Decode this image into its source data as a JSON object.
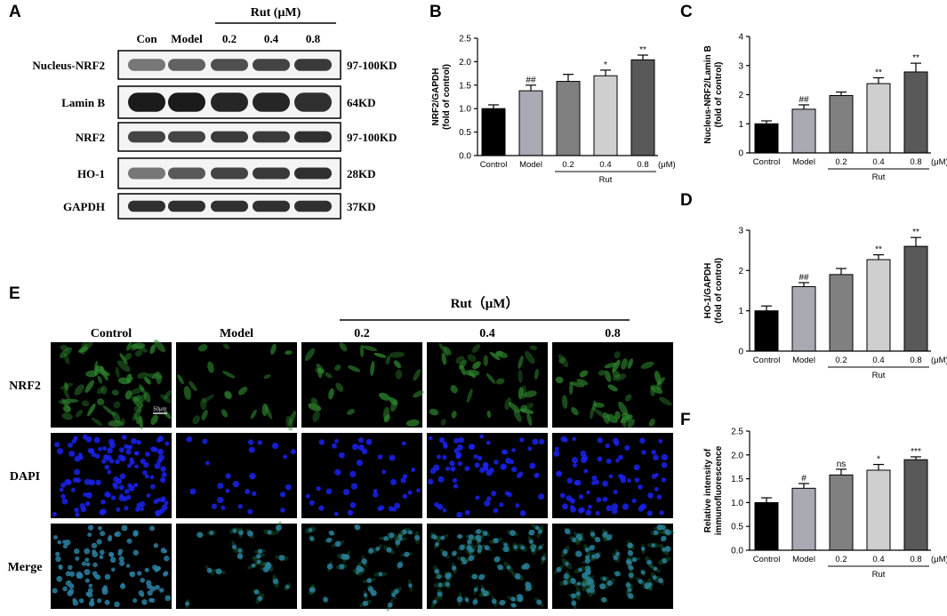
{
  "panels": {
    "A": {
      "letter": "A",
      "rut_header": "Rut (μM)",
      "lanes": [
        "Con",
        "Model",
        "0.2",
        "0.4",
        "0.8"
      ],
      "rows": [
        {
          "name": "Nucleus-NRF2",
          "size": "97-100KD",
          "intensity": [
            0.55,
            0.65,
            0.75,
            0.8,
            0.85
          ],
          "band_height": 0.42
        },
        {
          "name": "Lamin B",
          "size": "64KD",
          "intensity": [
            1.0,
            1.0,
            0.95,
            0.95,
            0.9
          ],
          "band_height": 0.6
        },
        {
          "name": "NRF2",
          "size": "97-100KD",
          "intensity": [
            0.8,
            0.8,
            0.85,
            0.85,
            0.9
          ],
          "band_height": 0.4
        },
        {
          "name": "HO-1",
          "size": "28KD",
          "intensity": [
            0.55,
            0.7,
            0.8,
            0.85,
            0.9
          ],
          "band_height": 0.38
        },
        {
          "name": "GAPDH",
          "size": "37KD",
          "intensity": [
            0.9,
            0.9,
            0.9,
            0.9,
            0.9
          ],
          "band_height": 0.45
        }
      ]
    },
    "E": {
      "letter": "E",
      "rut_header": "Rut（μM）",
      "columns": [
        "Control",
        "Model",
        "0.2",
        "0.4",
        "0.8"
      ],
      "rows": [
        "NRF2",
        "DAPI",
        "Merge"
      ],
      "scale_label": "50μm",
      "row_colors": [
        "#2f8a2f",
        "#1a22ee",
        "#2a7fa0"
      ],
      "cell_counts": [
        [
          70,
          22,
          30,
          38,
          40
        ],
        [
          120,
          25,
          40,
          70,
          75
        ],
        [
          110,
          25,
          40,
          70,
          75
        ]
      ]
    }
  },
  "chart_data": [
    {
      "letter": "B",
      "type": "bar",
      "categories": [
        "Control",
        "Model",
        "0.2",
        "0.4",
        "0.8"
      ],
      "values": [
        1.0,
        1.38,
        1.58,
        1.7,
        2.04
      ],
      "errors": [
        0.08,
        0.12,
        0.15,
        0.12,
        0.1
      ],
      "significance": [
        "",
        "##",
        "",
        "*",
        "**"
      ],
      "ylabel": "NRF2/GAPDH\n(fold of control)",
      "ylim": [
        0,
        2.5
      ],
      "yticks": [
        "0.0",
        "0.5",
        "1.0",
        "1.5",
        "2.0",
        "2.5"
      ],
      "unit": "(μM)",
      "group_label": "Rut",
      "colors": [
        "#000000",
        "#a9a9b3",
        "#808080",
        "#cfcfcf",
        "#595959"
      ]
    },
    {
      "letter": "C",
      "type": "bar",
      "categories": [
        "Control",
        "Model",
        "0.2",
        "0.4",
        "0.8"
      ],
      "values": [
        1.0,
        1.5,
        1.97,
        2.38,
        2.78
      ],
      "errors": [
        0.1,
        0.15,
        0.12,
        0.2,
        0.3
      ],
      "significance": [
        "",
        "##",
        "",
        "**",
        "**"
      ],
      "ylabel": "Nucleus-NRF2/Lamin B\n(fold of control)",
      "ylim": [
        0,
        4
      ],
      "yticks": [
        "0",
        "1",
        "2",
        "3",
        "4"
      ],
      "unit": "(μM)",
      "group_label": "Rut",
      "colors": [
        "#000000",
        "#a9a9b3",
        "#808080",
        "#cfcfcf",
        "#595959"
      ]
    },
    {
      "letter": "D",
      "type": "bar",
      "categories": [
        "Control",
        "Model",
        "0.2",
        "0.4",
        "0.8"
      ],
      "values": [
        1.0,
        1.6,
        1.9,
        2.27,
        2.6
      ],
      "errors": [
        0.12,
        0.1,
        0.15,
        0.12,
        0.22
      ],
      "significance": [
        "",
        "##",
        "",
        "**",
        "**"
      ],
      "ylabel": "HO-1/GAPDH\n(fold of control)",
      "ylim": [
        0,
        3
      ],
      "yticks": [
        "0",
        "1",
        "2",
        "3"
      ],
      "unit": "(μM)",
      "group_label": "Rut",
      "colors": [
        "#000000",
        "#a9a9b3",
        "#808080",
        "#cfcfcf",
        "#595959"
      ]
    },
    {
      "letter": "F",
      "type": "bar",
      "categories": [
        "Control",
        "Model",
        "0.2",
        "0.4",
        "0.8"
      ],
      "values": [
        1.0,
        1.3,
        1.58,
        1.68,
        1.9
      ],
      "errors": [
        0.1,
        0.1,
        0.12,
        0.12,
        0.06
      ],
      "significance": [
        "",
        "#",
        "ns",
        "*",
        "***"
      ],
      "ylabel": "Relative intensity of\nimmunofluorescence",
      "ylim": [
        0,
        2.5
      ],
      "yticks": [
        "0.0",
        "0.5",
        "1.0",
        "1.5",
        "2.0",
        "2.5"
      ],
      "unit": "(μM)",
      "group_label": "Rut",
      "colors": [
        "#000000",
        "#a9a9b3",
        "#808080",
        "#cfcfcf",
        "#595959"
      ]
    }
  ]
}
